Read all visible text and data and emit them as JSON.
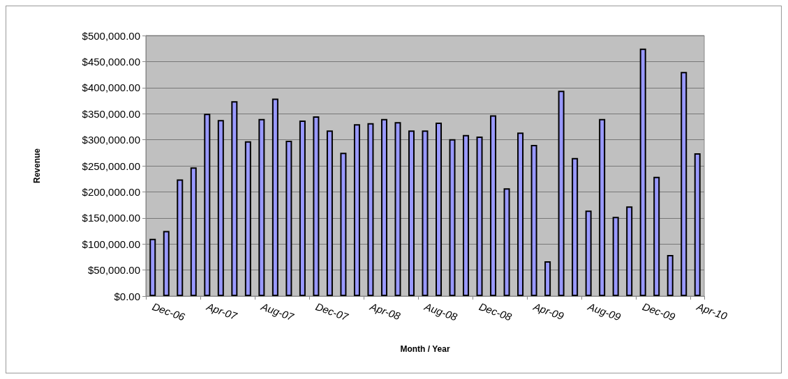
{
  "chart_data": {
    "type": "bar",
    "xlabel": "Month / Year",
    "ylabel": "Revenue",
    "color": "#9999ff",
    "categories": [
      "Dec-06",
      null,
      null,
      null,
      "Apr-07",
      null,
      null,
      null,
      "Aug-07",
      null,
      null,
      null,
      "Dec-07",
      null,
      null,
      null,
      "Apr-08",
      null,
      null,
      null,
      "Aug-08",
      null,
      null,
      null,
      "Dec-08",
      null,
      null,
      null,
      "Apr-09",
      null,
      null,
      null,
      "Aug-09",
      null,
      null,
      null,
      "Dec-09",
      null,
      null,
      null,
      "Apr-10"
    ],
    "values": [
      110000,
      125000,
      224000,
      247000,
      350000,
      338000,
      374000,
      297000,
      340000,
      379000,
      298000,
      337000,
      345000,
      318000,
      275000,
      330000,
      332000,
      340000,
      334000,
      318000,
      318000,
      333000,
      301000,
      309000,
      306000,
      347000,
      207000,
      314000,
      290000,
      67000,
      394000,
      265000,
      164000,
      340000,
      152000,
      172000,
      475000,
      229000,
      79000,
      430000,
      274000
    ],
    "ylim": [
      0,
      500000
    ],
    "yticks": [
      {
        "value": 0,
        "label": "$0.00"
      },
      {
        "value": 50000,
        "label": "$50,000.00"
      },
      {
        "value": 100000,
        "label": "$100,000.00"
      },
      {
        "value": 150000,
        "label": "$150,000.00"
      },
      {
        "value": 200000,
        "label": "$200,000.00"
      },
      {
        "value": 250000,
        "label": "$250,000.00"
      },
      {
        "value": 300000,
        "label": "$300,000.00"
      },
      {
        "value": 350000,
        "label": "$350,000.00"
      },
      {
        "value": 400000,
        "label": "$400,000.00"
      },
      {
        "value": 450000,
        "label": "$450,000.00"
      },
      {
        "value": 500000,
        "label": "$500,000.00"
      }
    ],
    "grid": "y"
  }
}
